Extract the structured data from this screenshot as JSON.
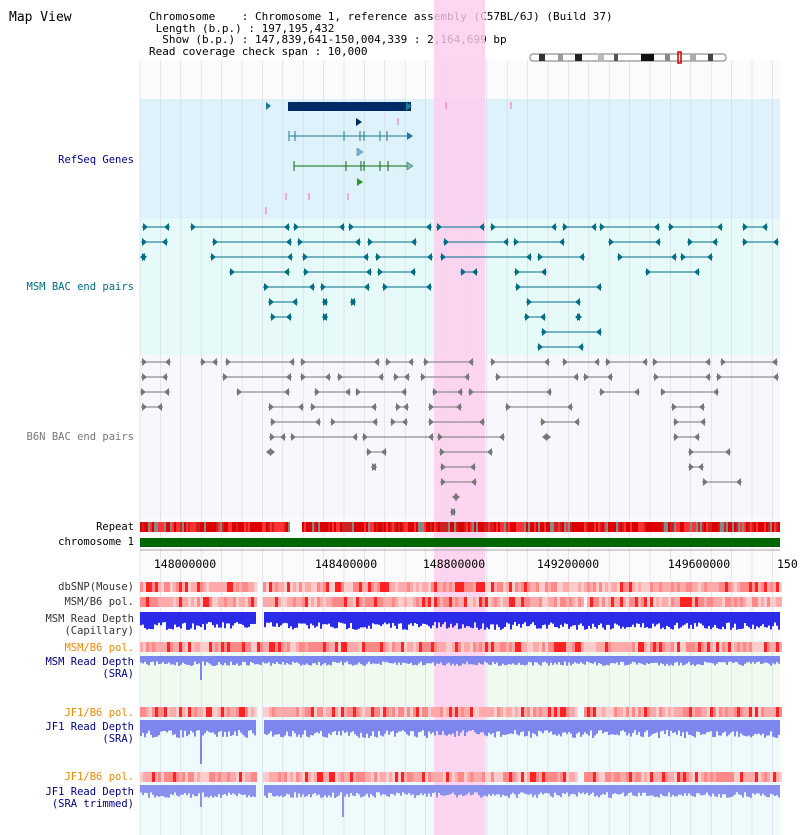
{
  "title": "Map View",
  "info": {
    "chromosome_line": "Chromosome    : Chromosome 1, reference assembly (C57BL/6J) (Build 37)",
    "length_line": " Length (b.p.) : 197,195,432",
    "show_line": "  Show (b.p.) : 147,839,641-150,004,339 : 2,164,699 bp",
    "span_line": "Read coverage check span : 10,000"
  },
  "tracks": {
    "refseq": "RefSeq Genes",
    "msm_bac": "MSM BAC end pairs",
    "b6n_bac": "B6N BAC end pairs",
    "repeat": "Repeat",
    "chromosome": "chromosome 1",
    "dbsnp": "dbSNP(Mouse)",
    "msm_b6_pol": "MSM/B6 pol.",
    "msm_depth_cap_1": "MSM Read Depth",
    "msm_depth_cap_2": "(Capillary)",
    "msm_b6_pol2": "MSM/B6 pol.",
    "msm_depth_sra_1": "MSM Read Depth",
    "msm_depth_sra_2": "(SRA)",
    "jf1_b6_pol": "JF1/B6 pol.",
    "jf1_depth_sra_1": "JF1 Read Depth",
    "jf1_depth_sra_2": "(SRA)",
    "jf1_b6_pol2": "JF1/B6 pol.",
    "jf1_depth_trim_1": "JF1 Read Depth",
    "jf1_depth_trim_2": "(SRA trimmed)"
  },
  "axis": {
    "ticks": [
      "148000000",
      "148400000",
      "148800000",
      "149200000",
      "149600000",
      "150"
    ]
  },
  "colors": {
    "highlight": "#ffccee",
    "refseq_bg": "#ddf2fb",
    "msm_bg": "#e6fafa",
    "b6n_bg": "#f7f7fd",
    "gene_dark": "#002a66",
    "gene_teal": "#1e7a96",
    "gene_green": "#0a6b0a",
    "bac_msm": "#006f86",
    "bac_b6n": "#777777",
    "chromosome_bar": "#006600",
    "repeat_red": "#dd0000",
    "depth_blue": "#2233ee",
    "label_blue": "#000088",
    "label_orange": "#ee8800"
  }
}
